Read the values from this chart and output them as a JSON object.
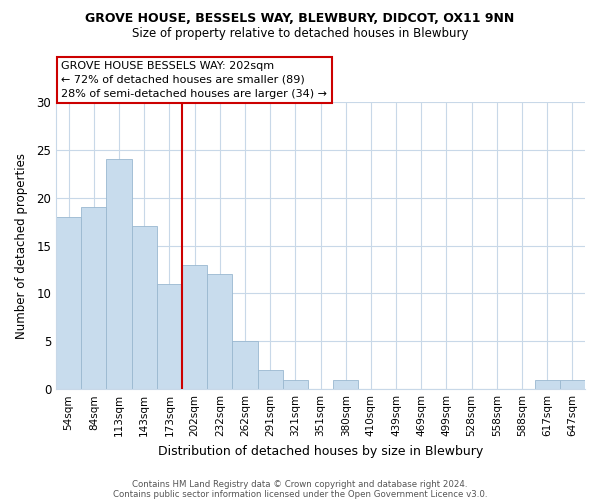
{
  "title": "GROVE HOUSE, BESSELS WAY, BLEWBURY, DIDCOT, OX11 9NN",
  "subtitle": "Size of property relative to detached houses in Blewbury",
  "xlabel": "Distribution of detached houses by size in Blewbury",
  "ylabel": "Number of detached properties",
  "bar_color": "#c8dced",
  "bar_edge_color": "#9ab8d0",
  "grid_color": "#c8d8e8",
  "vline_color": "#cc0000",
  "vline_index": 5,
  "categories": [
    "54sqm",
    "84sqm",
    "113sqm",
    "143sqm",
    "173sqm",
    "202sqm",
    "232sqm",
    "262sqm",
    "291sqm",
    "321sqm",
    "351sqm",
    "380sqm",
    "410sqm",
    "439sqm",
    "469sqm",
    "499sqm",
    "528sqm",
    "558sqm",
    "588sqm",
    "617sqm",
    "647sqm"
  ],
  "values": [
    18,
    19,
    24,
    17,
    11,
    13,
    12,
    5,
    2,
    1,
    0,
    1,
    0,
    0,
    0,
    0,
    0,
    0,
    0,
    1,
    1
  ],
  "ylim": [
    0,
    30
  ],
  "yticks": [
    0,
    5,
    10,
    15,
    20,
    25,
    30
  ],
  "annotation_title": "GROVE HOUSE BESSELS WAY: 202sqm",
  "annotation_line1": "← 72% of detached houses are smaller (89)",
  "annotation_line2": "28% of semi-detached houses are larger (34) →",
  "annotation_box_color": "#ffffff",
  "annotation_box_edge": "#cc0000",
  "footnote1": "Contains HM Land Registry data © Crown copyright and database right 2024.",
  "footnote2": "Contains public sector information licensed under the Open Government Licence v3.0.",
  "background_color": "#ffffff",
  "plot_bg_color": "#ffffff"
}
